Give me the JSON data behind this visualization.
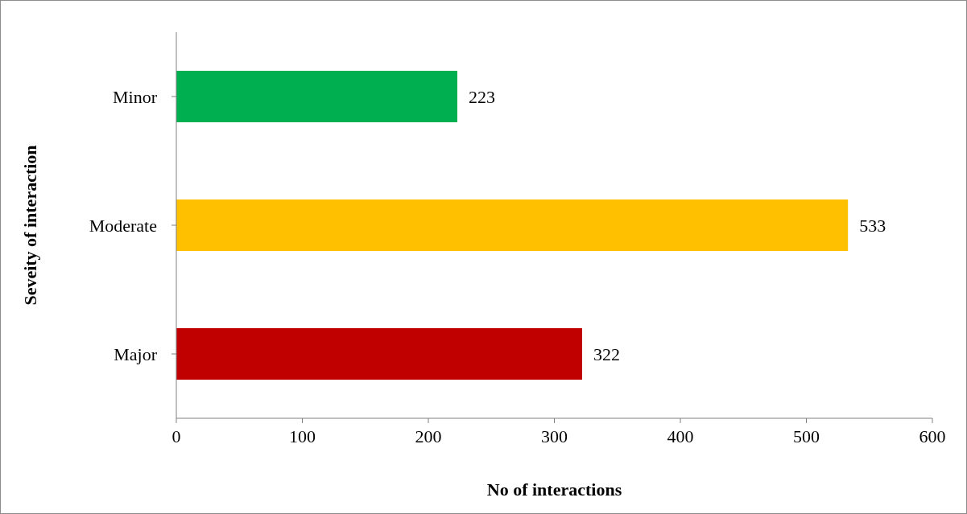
{
  "chart_data": {
    "type": "bar",
    "orientation": "horizontal",
    "xlabel": "No of  interactions",
    "ylabel": "Seveity of interaction",
    "categories": [
      "Minor",
      "Moderate",
      "Major"
    ],
    "values": [
      223,
      533,
      322
    ],
    "colors": [
      "#00b050",
      "#ffc000",
      "#c00000"
    ],
    "xlim": [
      0,
      600
    ],
    "xticks": [
      0,
      100,
      200,
      300,
      400,
      500,
      600
    ],
    "data_labels": true
  }
}
